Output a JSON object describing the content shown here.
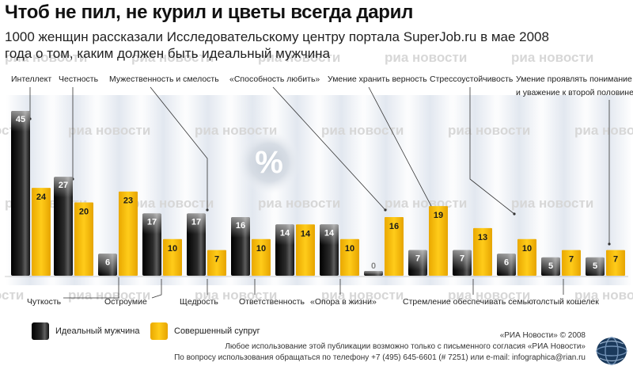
{
  "title": "Чтоб не пил, не курил и цветы всегда дарил",
  "subtitle_line1": "1000 женщин рассказали Исследовательскому центру портала SuperJob.ru в мае 2008",
  "subtitle_line2": "года о том, каким должен быть идеальный мужчина",
  "percent_symbol": "%",
  "watermark": "риа новости",
  "legend": {
    "ideal": "Идеальный мужчина",
    "spouse": "Совершенный супруг"
  },
  "footer": {
    "copyright": "«РИА Новости» © 2008",
    "line2": "Любое использование этой публикации возможно только с письменного согласия «РИА Новости»",
    "line3": "По вопросу использования обращаться по телефону +7 (495) 645-6601 (# 7251) или e-mail: infographica@rian.ru"
  },
  "colors": {
    "ideal": "#1c1c1c",
    "spouse": "#f2b400",
    "watermark": "#d7d7d7",
    "band": "#e8ecf2"
  },
  "chart_data": {
    "type": "bar",
    "title": "Чтоб не пил, не курил и цветы всегда дарил",
    "unit": "%",
    "ylim": [
      0,
      50
    ],
    "categories": [
      "Интеллект",
      "Честность",
      "Чуткость",
      "Остроумие",
      "Мужественность и смелость",
      "Щедрость",
      "Ответственность",
      "«Опора в жизни»",
      "«Способность любить»",
      "Умение хранить верность",
      "Стремление обеспечивать семью",
      "Стрессоустойчивость",
      "толстый кошелек",
      "Умение проявлять понимание и уважение к второй половине"
    ],
    "series": [
      {
        "name": "Идеальный мужчина",
        "values": [
          45,
          27,
          6,
          17,
          17,
          16,
          14,
          14,
          0,
          7,
          7,
          6,
          5,
          5
        ]
      },
      {
        "name": "Совершенный супруг",
        "values": [
          24,
          20,
          23,
          10,
          7,
          10,
          14,
          10,
          16,
          19,
          13,
          10,
          7,
          7
        ]
      }
    ],
    "labels_top": [
      {
        "text": "Интеллект",
        "category": 0
      },
      {
        "text": "Честность",
        "category": 1
      },
      {
        "text": "Мужественность и смелость",
        "category": 4
      },
      {
        "text": "«Способность любить»",
        "category": 8
      },
      {
        "text": "Умение хранить верность",
        "category": 9
      },
      {
        "text": "Стрессоустойчивость",
        "category": 11
      },
      {
        "text": "Умение проявлять понимание",
        "category": 13
      },
      {
        "text": "и уважение к второй половине",
        "category": 13
      }
    ],
    "labels_bottom": [
      {
        "text": "Чуткость",
        "category": 2
      },
      {
        "text": "Остроумие",
        "category": 3
      },
      {
        "text": "Щедрость",
        "category": 5
      },
      {
        "text": "Ответственность",
        "category": 6
      },
      {
        "text": "«Опора в жизни»",
        "category": 7
      },
      {
        "text": "Стремление обеспечивать семью",
        "category": 10
      },
      {
        "text": "толстый кошелек",
        "category": 12
      }
    ]
  }
}
